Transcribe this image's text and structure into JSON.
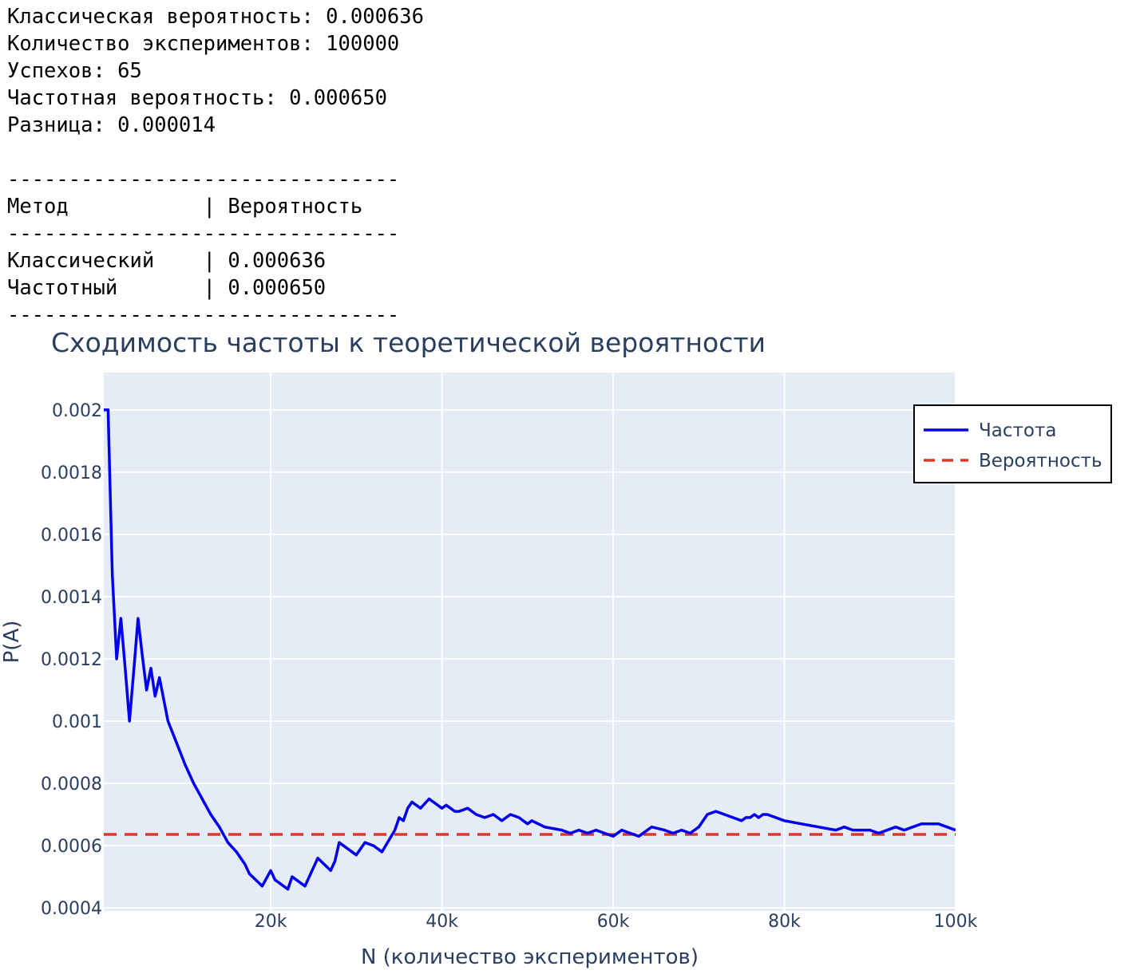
{
  "console": {
    "lines": [
      "Классическая вероятность: 0.000636",
      "Количество экспериментов: 100000",
      "Успехов: 65",
      "Частотная вероятность: 0.000650",
      "Разница: 0.000014",
      "",
      "--------------------------------",
      "Метод           | Вероятность",
      "--------------------------------",
      "Классический    | 0.000636",
      "Частотный       | 0.000650",
      "--------------------------------"
    ]
  },
  "chart_data": {
    "type": "line",
    "title": "Сходимость частоты к теоретической вероятности",
    "xlabel": "N (количество экспериментов)",
    "ylabel": "P(A)",
    "xlim": [
      500,
      100000
    ],
    "ylim": [
      0.00039,
      0.00212
    ],
    "x_ticks": [
      20000,
      40000,
      60000,
      80000,
      100000
    ],
    "x_tick_labels": [
      "20k",
      "40k",
      "60k",
      "80k",
      "100k"
    ],
    "y_ticks": [
      0.0004,
      0.0006,
      0.0008,
      0.001,
      0.0012,
      0.0014,
      0.0016,
      0.0018,
      0.002
    ],
    "y_tick_labels": [
      "0.0004",
      "0.0006",
      "0.0008",
      "0.001",
      "0.0012",
      "0.0014",
      "0.0016",
      "0.0018",
      "0.002"
    ],
    "grid": true,
    "legend_position": "top-right",
    "colors": {
      "plot_bg": "#e5ecf6",
      "grid": "#ffffff",
      "frequency": "#0000ee",
      "probability": "#e0352b",
      "text": "#2a3f5f"
    },
    "series": [
      {
        "name": "Частота",
        "style": "solid",
        "x": [
          500,
          1000,
          1500,
          2000,
          2500,
          3000,
          3500,
          4000,
          4500,
          5000,
          5500,
          6000,
          6500,
          7000,
          8000,
          9000,
          10000,
          11000,
          12000,
          13000,
          14000,
          15000,
          16000,
          17000,
          17500,
          19000,
          20000,
          20500,
          22000,
          22500,
          24000,
          25500,
          27000,
          27500,
          28000,
          30000,
          30500,
          31000,
          32000,
          33000,
          34500,
          35000,
          35500,
          36000,
          36500,
          37500,
          38500,
          40000,
          40500,
          41500,
          42000,
          43000,
          44000,
          45000,
          46000,
          46500,
          47000,
          48000,
          49000,
          50000,
          50500,
          52000,
          54000,
          55000,
          56000,
          57000,
          58000,
          59000,
          60000,
          61000,
          62000,
          63000,
          64000,
          64500,
          66000,
          67000,
          68000,
          69000,
          70000,
          70500,
          71000,
          72000,
          73000,
          74000,
          75000,
          75500,
          76000,
          76500,
          77000,
          77500,
          78000,
          79000,
          80000,
          82000,
          84000,
          86000,
          87000,
          88000,
          89000,
          90000,
          91000,
          92000,
          93000,
          94000,
          95000,
          96000,
          97000,
          98000,
          100000
        ],
        "y": [
          0.002,
          0.002,
          0.00147,
          0.0012,
          0.00133,
          0.00117,
          0.001,
          0.00116,
          0.00133,
          0.00121,
          0.0011,
          0.00117,
          0.00108,
          0.00114,
          0.001,
          0.00093,
          0.00086,
          0.0008,
          0.00075,
          0.0007,
          0.00066,
          0.00061,
          0.00058,
          0.00054,
          0.00051,
          0.00047,
          0.00052,
          0.00049,
          0.00046,
          0.0005,
          0.00047,
          0.00056,
          0.00052,
          0.00055,
          0.00061,
          0.00057,
          0.00059,
          0.00061,
          0.0006,
          0.00058,
          0.00065,
          0.00069,
          0.00068,
          0.00072,
          0.00074,
          0.00072,
          0.00075,
          0.00072,
          0.00073,
          0.00071,
          0.00071,
          0.00072,
          0.0007,
          0.00069,
          0.0007,
          0.00069,
          0.00068,
          0.0007,
          0.00069,
          0.00067,
          0.00068,
          0.00066,
          0.00065,
          0.00064,
          0.00065,
          0.00064,
          0.00065,
          0.00064,
          0.00063,
          0.00065,
          0.00064,
          0.00063,
          0.00065,
          0.00066,
          0.00065,
          0.00064,
          0.00065,
          0.00064,
          0.00066,
          0.00068,
          0.0007,
          0.00071,
          0.0007,
          0.00069,
          0.00068,
          0.00069,
          0.00069,
          0.0007,
          0.00069,
          0.0007,
          0.0007,
          0.00069,
          0.00068,
          0.00067,
          0.00066,
          0.00065,
          0.00066,
          0.00065,
          0.00065,
          0.00065,
          0.00064,
          0.00065,
          0.00066,
          0.00065,
          0.00066,
          0.00067,
          0.00067,
          0.00067,
          0.00065
        ]
      },
      {
        "name": "Вероятность",
        "style": "dashed",
        "x": [
          500,
          100000
        ],
        "y": [
          0.000636,
          0.000636
        ]
      }
    ]
  }
}
